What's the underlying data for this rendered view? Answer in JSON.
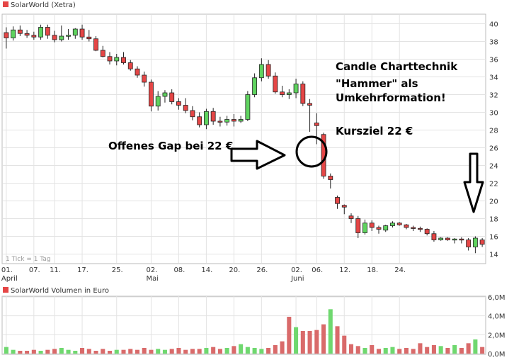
{
  "colors": {
    "up": "#5fd35f",
    "down": "#e54646",
    "border": "#000000",
    "grid": "#e3e3e3",
    "vol_up": "#6fd86f",
    "vol_down": "#d96a6a"
  },
  "price_chart": {
    "title": "SolarWorld (Xetra)",
    "ticks_note": "1 Tick = 1 Tag",
    "y_ticks": [
      "40",
      "38",
      "36",
      "34",
      "32",
      "30",
      "28",
      "26",
      "24",
      "22",
      "20",
      "18",
      "16",
      "14"
    ],
    "x_labels": [
      "01.",
      "07.",
      "11.",
      "17.",
      "25.",
      "02.",
      "08.",
      "14.",
      "20.",
      "26.",
      "02.",
      "06.",
      "12.",
      "18.",
      "24."
    ],
    "month_labels": [
      "April",
      "Mai",
      "Juni"
    ]
  },
  "volume_chart": {
    "title": "SolarWorld Volumen in Euro",
    "y_ticks": [
      "6,0M",
      "4,0M",
      "2,0M",
      "0,0M"
    ]
  },
  "annotations": {
    "gap": "Offenes Gap bei 22 €",
    "line1": "Candle Charttechnik",
    "line2": "\"Hammer\" als",
    "line3": "Umkehrformation!",
    "target": "Kursziel 22 €"
  },
  "chart_data": [
    {
      "type": "candlestick",
      "title": "SolarWorld (Xetra)",
      "ylim": [
        13,
        41
      ],
      "x_tick_labels": [
        "01.",
        "07.",
        "11.",
        "17.",
        "25.",
        "02.",
        "08.",
        "14.",
        "20.",
        "26.",
        "02.",
        "06.",
        "12.",
        "18.",
        "24."
      ],
      "month_labels": [
        "April",
        "Mai",
        "Juni"
      ],
      "ohlc": [
        [
          39.0,
          39.6,
          37.2,
          38.4
        ],
        [
          38.4,
          39.7,
          38.1,
          39.3
        ],
        [
          39.3,
          39.8,
          38.6,
          38.9
        ],
        [
          38.9,
          39.3,
          38.4,
          38.7
        ],
        [
          38.7,
          39.1,
          38.2,
          38.5
        ],
        [
          38.5,
          39.9,
          38.2,
          39.6
        ],
        [
          39.6,
          39.9,
          38.3,
          38.7
        ],
        [
          38.7,
          39.2,
          37.9,
          38.2
        ],
        [
          38.2,
          39.8,
          38.0,
          38.6
        ],
        [
          38.6,
          39.4,
          38.2,
          38.7
        ],
        [
          38.7,
          39.5,
          38.3,
          39.4
        ],
        [
          39.4,
          39.9,
          38.2,
          38.5
        ],
        [
          38.5,
          39.3,
          38.0,
          38.3
        ],
        [
          38.3,
          38.6,
          36.9,
          37.0
        ],
        [
          37.0,
          37.5,
          36.2,
          36.3
        ],
        [
          36.3,
          36.8,
          35.4,
          35.8
        ],
        [
          35.8,
          36.6,
          35.3,
          36.2
        ],
        [
          36.2,
          36.8,
          35.4,
          35.6
        ],
        [
          35.6,
          35.9,
          34.7,
          34.9
        ],
        [
          34.9,
          35.2,
          33.9,
          34.2
        ],
        [
          34.2,
          34.6,
          32.9,
          33.4
        ],
        [
          33.4,
          33.7,
          30.1,
          30.7
        ],
        [
          30.7,
          32.4,
          30.2,
          31.8
        ],
        [
          31.8,
          32.5,
          31.1,
          32.2
        ],
        [
          32.2,
          32.6,
          30.9,
          31.2
        ],
        [
          31.2,
          31.6,
          30.3,
          30.8
        ],
        [
          30.8,
          31.6,
          29.9,
          30.2
        ],
        [
          30.2,
          30.7,
          29.1,
          29.5
        ],
        [
          29.5,
          30.0,
          28.3,
          28.6
        ],
        [
          28.6,
          30.4,
          28.1,
          30.1
        ],
        [
          30.1,
          30.5,
          28.6,
          29.0
        ],
        [
          29.0,
          29.5,
          28.4,
          28.9
        ],
        [
          28.9,
          29.6,
          28.5,
          29.2
        ],
        [
          29.2,
          29.8,
          28.4,
          29.0
        ],
        [
          29.0,
          29.6,
          28.8,
          29.2
        ],
        [
          29.2,
          32.4,
          29.0,
          32.0
        ],
        [
          32.0,
          34.4,
          31.7,
          33.9
        ],
        [
          33.9,
          36.1,
          33.5,
          35.4
        ],
        [
          35.4,
          35.9,
          33.8,
          34.1
        ],
        [
          34.1,
          34.5,
          32.1,
          32.3
        ],
        [
          32.3,
          33.0,
          31.7,
          32.0
        ],
        [
          32.0,
          32.6,
          31.5,
          32.2
        ],
        [
          32.2,
          33.8,
          31.6,
          33.2
        ],
        [
          33.2,
          33.5,
          30.7,
          31.0
        ],
        [
          31.0,
          31.5,
          27.8,
          30.8
        ],
        [
          28.8,
          29.9,
          26.4,
          28.5
        ],
        [
          27.5,
          27.7,
          22.5,
          22.8
        ],
        [
          22.8,
          23.1,
          21.4,
          22.4
        ],
        [
          20.4,
          20.6,
          19.1,
          19.7
        ],
        [
          19.5,
          19.6,
          18.5,
          19.3
        ],
        [
          18.3,
          18.6,
          17.5,
          18.0
        ],
        [
          18.0,
          18.3,
          15.8,
          16.4
        ],
        [
          16.4,
          17.9,
          16.2,
          17.5
        ],
        [
          17.5,
          17.8,
          16.6,
          17.0
        ],
        [
          17.0,
          17.2,
          16.3,
          16.8
        ],
        [
          16.7,
          17.3,
          16.5,
          17.2
        ],
        [
          17.2,
          17.7,
          17.0,
          17.5
        ],
        [
          17.5,
          17.6,
          17.2,
          17.3
        ],
        [
          17.3,
          17.4,
          16.8,
          17.0
        ],
        [
          17.0,
          17.2,
          16.6,
          16.9
        ],
        [
          16.9,
          17.1,
          16.5,
          16.8
        ],
        [
          16.8,
          16.9,
          16.1,
          16.3
        ],
        [
          16.3,
          16.6,
          15.4,
          15.6
        ],
        [
          15.6,
          15.9,
          15.5,
          15.8
        ],
        [
          15.8,
          15.9,
          15.5,
          15.6
        ],
        [
          15.6,
          15.8,
          15.2,
          15.7
        ],
        [
          15.7,
          15.9,
          15.2,
          15.6
        ],
        [
          15.6,
          15.8,
          14.4,
          14.8
        ],
        [
          14.8,
          16.0,
          14.1,
          15.8
        ],
        [
          15.6,
          15.8,
          14.8,
          15.1
        ]
      ]
    },
    {
      "type": "bar",
      "title": "SolarWorld Volumen in Euro",
      "ylim": [
        0,
        6.0
      ],
      "y_unit": "M Euro",
      "values": [
        0.7,
        0.4,
        0.3,
        0.3,
        0.4,
        0.3,
        0.4,
        0.5,
        0.6,
        0.4,
        0.3,
        0.6,
        0.5,
        0.3,
        0.5,
        0.3,
        0.4,
        0.4,
        0.5,
        0.4,
        0.6,
        0.4,
        0.5,
        0.4,
        0.5,
        0.6,
        0.4,
        0.5,
        0.5,
        0.6,
        0.7,
        0.5,
        0.6,
        0.8,
        1.0,
        0.7,
        0.6,
        0.5,
        0.6,
        0.9,
        1.3,
        3.9,
        2.8,
        2.4,
        2.4,
        2.5,
        3.1,
        4.7,
        2.9,
        1.9,
        1.0,
        0.8,
        0.6,
        0.9,
        0.5,
        0.6,
        0.7,
        0.5,
        0.6,
        0.5,
        1.1,
        0.7,
        0.9,
        0.8,
        0.6,
        0.9,
        0.6,
        1.1,
        1.5,
        0.7
      ],
      "up": [
        1,
        1,
        0,
        0,
        0,
        1,
        0,
        0,
        1,
        1,
        1,
        0,
        0,
        0,
        0,
        0,
        1,
        0,
        0,
        0,
        0,
        0,
        1,
        1,
        0,
        0,
        0,
        0,
        0,
        1,
        0,
        0,
        1,
        0,
        1,
        1,
        1,
        1,
        0,
        0,
        0,
        0,
        1,
        0,
        0,
        0,
        0,
        1,
        0,
        0,
        0,
        0,
        1,
        0,
        0,
        1,
        1,
        0,
        0,
        0,
        0,
        0,
        0,
        1,
        0,
        1,
        0,
        0,
        1,
        0
      ]
    }
  ]
}
